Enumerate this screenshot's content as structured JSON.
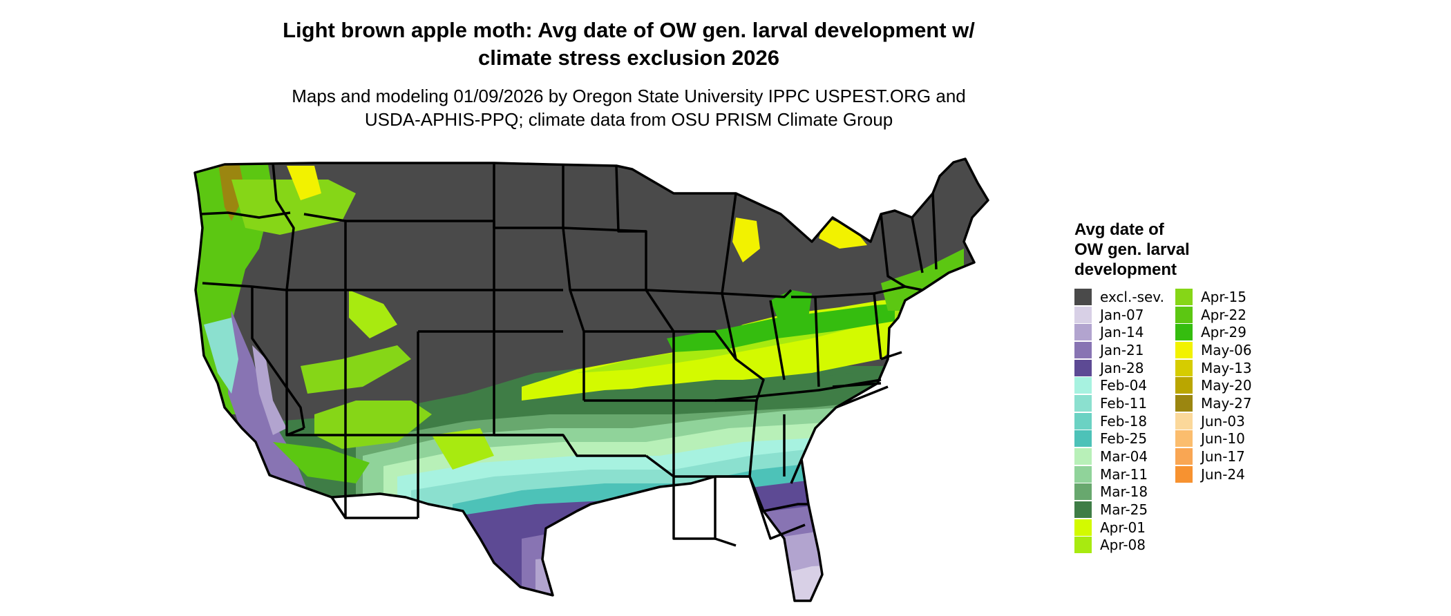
{
  "title_lines": [
    "Light brown apple moth: Avg date of OW gen. larval development w/",
    "climate stress exclusion 2026"
  ],
  "subtitle_lines": [
    "Maps and modeling 01/09/2026 by Oregon State University IPPC USPEST.ORG and",
    "USDA-APHIS-PPQ; climate data from OSU PRISM Climate Group"
  ],
  "legend": {
    "title_lines": [
      "Avg date of",
      "OW gen. larval",
      "development"
    ],
    "items": [
      {
        "label": "excl.-sev.",
        "color": "#4a4a4a"
      },
      {
        "label": "Jan-07",
        "color": "#d8d0e6"
      },
      {
        "label": "Jan-14",
        "color": "#b2a4cf"
      },
      {
        "label": "Jan-21",
        "color": "#8874b3"
      },
      {
        "label": "Jan-28",
        "color": "#5d4a94"
      },
      {
        "label": "Feb-04",
        "color": "#a7f2e0"
      },
      {
        "label": "Feb-11",
        "color": "#8be0cf"
      },
      {
        "label": "Feb-18",
        "color": "#6bd2c3"
      },
      {
        "label": "Feb-25",
        "color": "#4dc2b8"
      },
      {
        "label": "Mar-04",
        "color": "#b8f0b8"
      },
      {
        "label": "Mar-11",
        "color": "#90d39a"
      },
      {
        "label": "Mar-18",
        "color": "#68a86e"
      },
      {
        "label": "Mar-25",
        "color": "#3f7d46"
      },
      {
        "label": "Apr-01",
        "color": "#d3fa00"
      },
      {
        "label": "Apr-08",
        "color": "#a8ea10"
      },
      {
        "label": "Apr-15",
        "color": "#86d617"
      },
      {
        "label": "Apr-22",
        "color": "#5cc712"
      },
      {
        "label": "Apr-29",
        "color": "#35bd0f"
      },
      {
        "label": "May-06",
        "color": "#f2f200"
      },
      {
        "label": "May-13",
        "color": "#d6cc00"
      },
      {
        "label": "May-20",
        "color": "#baa600"
      },
      {
        "label": "May-27",
        "color": "#9b8610"
      },
      {
        "label": "Jun-03",
        "color": "#fbd89a"
      },
      {
        "label": "Jun-10",
        "color": "#fbbd6e"
      },
      {
        "label": "Jun-17",
        "color": "#f9a653"
      },
      {
        "label": "Jun-24",
        "color": "#f79230"
      }
    ]
  }
}
